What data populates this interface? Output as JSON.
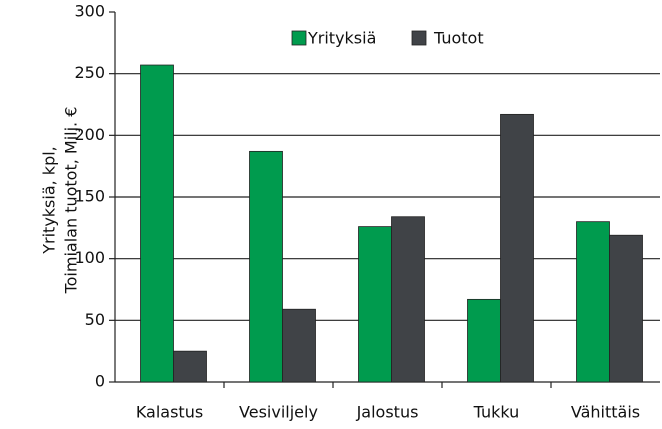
{
  "chart_data": {
    "type": "bar",
    "ylabel": [
      "Yrityksiä, kpl,",
      "Toimialan tuotot,  Milj. €"
    ],
    "categories": [
      "Kalastus",
      "Vesiviljely",
      "Jalostus",
      "Tukku",
      "Vähittäis"
    ],
    "series": [
      {
        "name": "Yrityksiä",
        "color": "#009b4e",
        "values": [
          257,
          187,
          126,
          67,
          130
        ]
      },
      {
        "name": "Tuotot",
        "color": "#404347",
        "values": [
          25,
          59,
          134,
          217,
          119
        ]
      }
    ],
    "ylim": [
      0,
      300
    ],
    "yticks": [
      0,
      50,
      100,
      150,
      200,
      250,
      300
    ],
    "grid": true,
    "legend": "top"
  }
}
